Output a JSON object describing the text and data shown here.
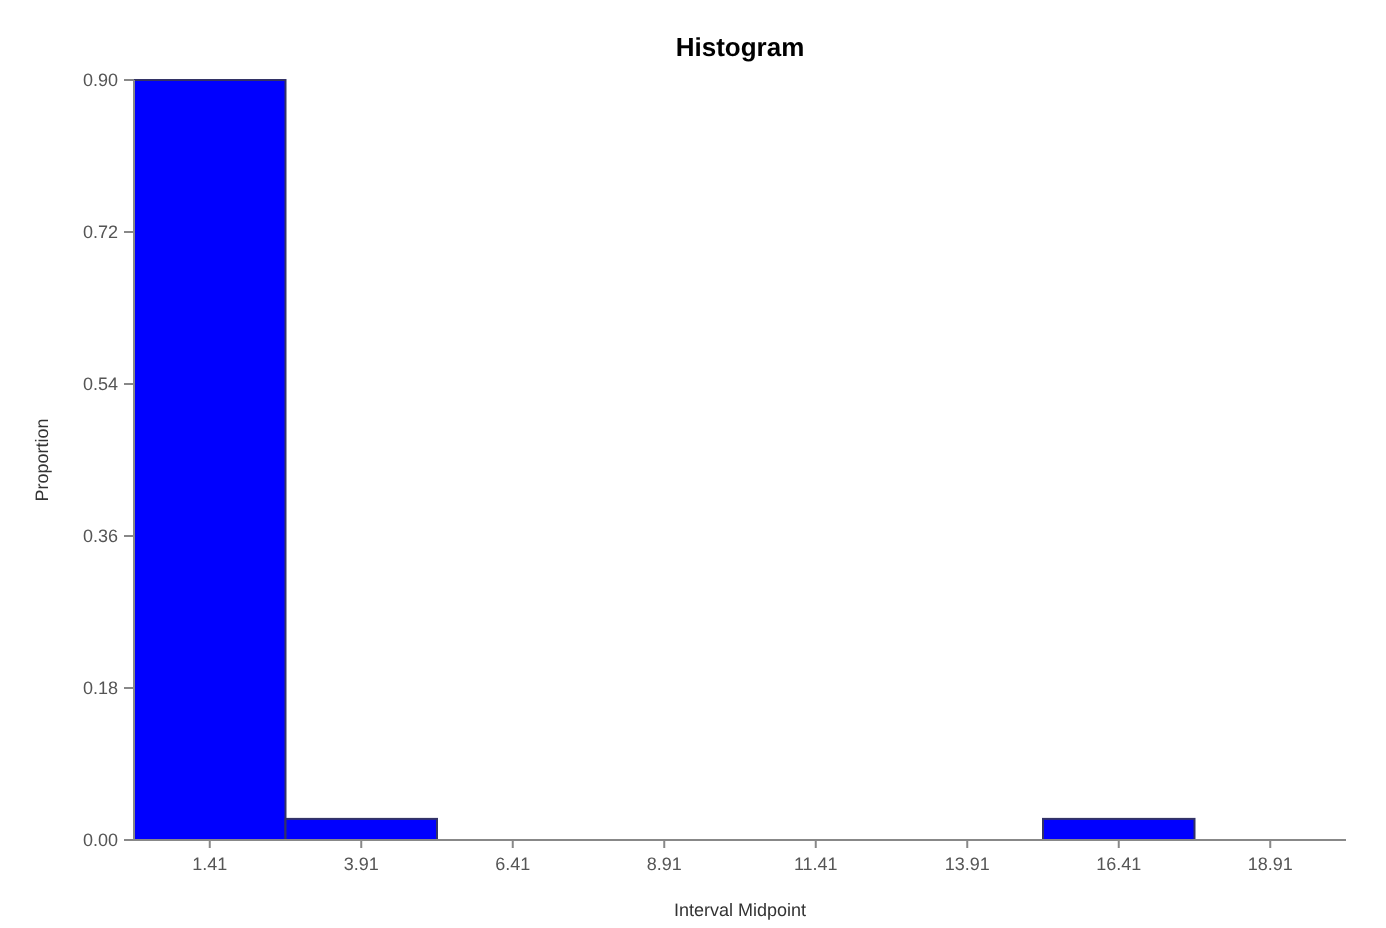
{
  "chart_data": {
    "type": "histogram",
    "title": "Histogram",
    "xlabel": "Interval Midpoint",
    "ylabel": "Proportion",
    "bins": [
      0.16,
      2.66,
      5.16,
      7.66,
      10.16,
      12.66,
      15.16,
      17.66,
      20.16
    ],
    "values": [
      0.9,
      0.025,
      0,
      0,
      0,
      0,
      0.025,
      0
    ],
    "color": "#0000ff",
    "xlim": [
      0.16,
      20.16
    ],
    "xticks": [
      1.41,
      3.91,
      6.41,
      8.91,
      11.41,
      13.91,
      16.41,
      18.91
    ],
    "ylim": [
      0,
      0.9
    ],
    "yticks": [
      {
        "value": 0,
        "label": "0.00"
      },
      {
        "value": 0.18,
        "label": "0.18"
      },
      {
        "value": 0.36,
        "label": "0.36"
      },
      {
        "value": 0.54,
        "label": "0.54"
      },
      {
        "value": 0.72,
        "label": "0.72"
      },
      {
        "value": 0.9,
        "label": "0.90"
      }
    ],
    "grid": false
  }
}
